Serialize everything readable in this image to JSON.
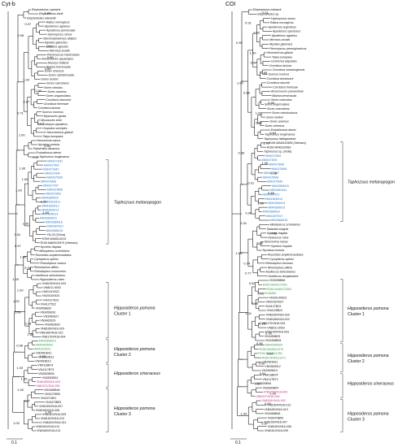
{
  "colors": {
    "blue": "#2d78c8",
    "green": "#3a9a4a",
    "pink": "#c0328a",
    "black": "#111111"
  },
  "panels": [
    {
      "title": "Cyt-b",
      "scale": "0.1",
      "top": [
        "Elephantulus rupestris",
        "Elephantulus intufi",
        "Elephantulus edwardii"
      ],
      "core": [
        "Rattus norvegicus",
        "Apodemus agrarius",
        "Apodemus peninsulae",
        "Hylomyscus simus",
        "Stenocephalemys albipes",
        "Myodes glareolus",
        "Microtus agrestis",
        "Microtus arvalis",
        "Peromyscus maniculatus",
        "Anourosorex squamipes",
        "Neomys fodiens",
        "Blarina brevicauda",
        "Sorex cinereus",
        "Sorex cylindricauda",
        "Sorex isodon",
        "Sorex caecutiens",
        "Sorex minutus",
        "Sorex araneus",
        "Sorex unguiculatus",
        "Crocidura obscurior",
        "Crocidura theresae",
        "Crocidura lasiura",
        "Suncus murinus",
        "Mysosorex geata",
        "Mysosorex zinki",
        "Scalopus aquaticus",
        "Uropsilus soricipes",
        "Neurotrichus gibbsii",
        "Talpa europaea"
      ],
      "bats_a": [
        "Neoromicia nanus",
        "Nyctalus noctula",
        "Pipistrellus abramus",
        "Emballonura alecto",
        "Taphozous longimanus"
      ],
      "tapho": [
        {
          "t": "MM4371M1",
          "c": "blue"
        },
        {
          "t": "MM4372M2",
          "c": "blue"
        },
        {
          "t": "MM4373M3",
          "c": "blue"
        },
        {
          "t": "MM4374M4",
          "c": "blue"
        },
        {
          "t": "MM4375M5",
          "c": "blue"
        },
        {
          "t": "MM4376M6",
          "c": "blue"
        },
        {
          "t": "MM4377M7",
          "c": "blue"
        },
        {
          "t": "MM4378M8",
          "c": "blue"
        },
        {
          "t": "MM4379M9",
          "c": "blue"
        },
        {
          "t": "MM4380M10",
          "c": "blue"
        },
        {
          "t": "MM4381M11",
          "c": "blue"
        },
        {
          "t": "MM4382M12",
          "c": "blue"
        },
        {
          "t": "MM4383M13",
          "c": "blue"
        },
        {
          "t": "MM4384M14",
          "c": "blue"
        },
        {
          "t": "MM4385M15",
          "c": "blue"
        },
        {
          "t": "MM4386M16",
          "c": "blue"
        },
        {
          "t": "MM4387M17",
          "c": "blue"
        },
        {
          "t": "MM4388M18",
          "c": "blue"
        },
        {
          "t": "YN-25 (China)",
          "c": "black"
        },
        {
          "t": "ROM MAM111014",
          "c": "black"
        },
        {
          "t": "ROM MAM110970 (Vietnam)",
          "c": "black"
        }
      ],
      "tapho_label": "Taphozous melanopogon",
      "bats_b": [
        "Nycteris hispida",
        "Miniopterus schreibersi",
        "Rousettus amplexicaudatus",
        "Cynopterus sphinx",
        "Rhinolophus sinicus",
        "Rhinolophus affinis",
        "Rhinolophus monoceros",
        "Aselliscus stoliczkanus",
        "Hipposideros ruber"
      ],
      "c1": [
        {
          "t": "VN8150VN16-003",
          "c": "black"
        },
        {
          "t": "VN8011 6002",
          "c": "black"
        },
        {
          "t": "VN2014X522",
          "c": "black"
        },
        {
          "t": "VN2016X524",
          "c": "black"
        },
        {
          "t": "VN4127623",
          "c": "black"
        },
        {
          "t": "VN4127522",
          "c": "black"
        },
        {
          "t": "VN3458828",
          "c": "black"
        },
        {
          "t": "VN3459626",
          "c": "black"
        },
        {
          "t": "VN3460627",
          "c": "black"
        },
        {
          "t": "VN3462629",
          "c": "black"
        },
        {
          "t": "VN3463630",
          "c": "black"
        },
        {
          "t": "VN8166VN16-020",
          "c": "black"
        },
        {
          "t": "VN8168VN16-022",
          "c": "black"
        },
        {
          "t": "VN8170VN16-004",
          "c": "black"
        }
      ],
      "c2": [
        {
          "t": "MM4389M19",
          "c": "green"
        },
        {
          "t": "MM4390M20",
          "c": "green"
        },
        {
          "t": "MM4391M21",
          "c": "green"
        },
        {
          "t": "VN2961B11",
          "c": "black"
        },
        {
          "t": "VN2962B12",
          "c": "black"
        },
        {
          "t": "VN2963B13",
          "c": "black"
        }
      ],
      "cin": [
        {
          "t": "VN4118B74",
          "c": "black"
        },
        {
          "t": "VN4117B73",
          "c": "black"
        },
        {
          "t": "VN2839B06",
          "c": "black"
        },
        {
          "t": "VN2830B04",
          "c": "black"
        },
        {
          "t": "VN8155VN16-003",
          "c": "pink"
        },
        {
          "t": "VN8157VN16-005",
          "c": "pink"
        }
      ],
      "c3": [
        {
          "t": "VN3468B48",
          "c": "black"
        },
        {
          "t": "VN3470B50",
          "c": "black"
        },
        {
          "t": "VN3471B51",
          "c": "black"
        },
        {
          "t": "VN3473B53",
          "c": "black"
        },
        {
          "t": "VN8159VN16-007",
          "c": "black"
        },
        {
          "t": "VN8160VN16-008",
          "c": "black"
        },
        {
          "t": "VN8161VN16-009",
          "c": "black"
        },
        {
          "t": "VN8162VN16-010",
          "c": "black"
        },
        {
          "t": "VN8163VN16-011",
          "c": "black"
        },
        {
          "t": "VN8164VN16-012",
          "c": "black"
        },
        {
          "t": "VN8165VN16-013",
          "c": "black"
        }
      ],
      "supports": [
        "1.00",
        "0.97",
        "0.98",
        "1.00",
        "0.96",
        "0.89",
        "1.00",
        "1.00",
        "0.87",
        "0.71",
        "1.00",
        "1.00",
        "0.94",
        "0.97",
        "1.00",
        "1.00",
        "1.00",
        "1.00",
        "1.00",
        "1.00",
        "0.81",
        "0.97",
        "1.00",
        "0.98",
        "1.00",
        "1.00",
        "1.00",
        "1.00",
        "0.94",
        "1.00",
        "0.98",
        "1.00",
        "1.00",
        "1.00",
        "1.00",
        "0.87",
        "1.00",
        "1.00"
      ]
    },
    {
      "title": "COI",
      "scale": "0.1",
      "top": [
        "Elephantulus edwardi",
        "Elephantulus sp."
      ],
      "core": [
        "Hylomyscus simus",
        "Rattus norvegicus",
        "Apodemus argenteus",
        "Apodemus speciosus",
        "Apodemus agrarius",
        "Microtus arvalis",
        "Myodes glareolus",
        "Peromyscus pennsylvanicus",
        "Neurotrichus gibbsii",
        "Talpa europaea",
        "Urotrichus talpoides",
        "Crocidura lasiura",
        "Crocidura shantungensis",
        "Suncus murinus",
        "Crocidura dsinezumi",
        "Crocidura douceti",
        "Crocidura theresae",
        "Anourosorex yamashinai",
        "Blarina brevicauda",
        "Sorex roboratus",
        "Sorex unguiculatus",
        "Sorex caecutiens",
        "Sorex minutissimus",
        "Sorex isodon",
        "Sorex araneus",
        "Sorex cinereus",
        "Emballonura alecto",
        "Taphozous longimanus",
        "Taphozous hildegardeae"
      ],
      "bats_a": [],
      "tapho": [
        {
          "t": "ROM MAM110969 (Vietnam)",
          "c": "black"
        },
        {
          "t": "ROM MAM110983",
          "c": "black"
        },
        {
          "t": "Taphozous sp. (India)",
          "c": "black"
        },
        {
          "t": "MM4373M3",
          "c": "blue"
        },
        {
          "t": "MM4374M4",
          "c": "blue"
        },
        {
          "t": "MM4375M5",
          "c": "blue"
        },
        {
          "t": "MM4376M6",
          "c": "blue"
        },
        {
          "t": "MM4377M7",
          "c": "blue"
        },
        {
          "t": "MM4378M8",
          "c": "blue"
        },
        {
          "t": "MM4379M9",
          "c": "blue"
        },
        {
          "t": "MM4380M10",
          "c": "blue"
        },
        {
          "t": "MM4381M11",
          "c": "blue"
        },
        {
          "t": "MM4382M12",
          "c": "blue"
        },
        {
          "t": "MM4383M13",
          "c": "blue"
        },
        {
          "t": "MM4384M14",
          "c": "blue"
        },
        {
          "t": "MM4385M15",
          "c": "blue"
        },
        {
          "t": "MM4386M16",
          "c": "blue"
        },
        {
          "t": "MM4387M17",
          "c": "blue"
        },
        {
          "t": "MM4388M18",
          "c": "blue"
        }
      ],
      "tapho_label": "Taphozous melanopogon",
      "bats_b": [
        "Miniopterus schreibersi",
        "Tadarida insignis",
        "Nycteris tragata",
        "Reduncus rufus",
        "Neoromicia nanus",
        "Nycteris hispida",
        "Nyctalus noctula",
        "Rousettus amplexicaudatus",
        "Cynopterus sphinx",
        "Rhinolophus thomasi",
        "Rhinolophus affinis",
        "Aselliscus stoliczkanus",
        "Aselliscus dongbacana"
      ],
      "c1": [
        {
          "t": "VN3498B66",
          "c": "black"
        },
        {
          "t": "ROM MAM107900",
          "c": "green"
        },
        {
          "t": "ROM MAM107890",
          "c": "green"
        },
        {
          "t": "VN1962B4",
          "c": "green"
        },
        {
          "t": "VN2014X522",
          "c": "black"
        },
        {
          "t": "VN2016X524",
          "c": "black"
        },
        {
          "t": "VN4127B23",
          "c": "black"
        },
        {
          "t": "VN4128B24",
          "c": "black"
        },
        {
          "t": "VN8166VN16-020",
          "c": "black"
        },
        {
          "t": "VN8168VN16-022",
          "c": "black"
        },
        {
          "t": "VN8170VN16-004",
          "c": "black"
        },
        {
          "t": "VN8011 6002",
          "c": "black"
        },
        {
          "t": "VN8150VN16-003",
          "c": "black"
        },
        {
          "t": "VN3455B25",
          "c": "black"
        },
        {
          "t": "VN3458B28",
          "c": "black"
        }
      ],
      "c2": [
        {
          "t": "MM4390M20",
          "c": "green"
        },
        {
          "t": "ROM MAM111370",
          "c": "green"
        },
        {
          "t": "ROM MAM111350",
          "c": "green"
        },
        {
          "t": "ROM MAM111371",
          "c": "green"
        },
        {
          "t": "VN2961B11",
          "c": "black"
        },
        {
          "t": "VN2962B12",
          "c": "black"
        },
        {
          "t": "VN2963B13",
          "c": "black"
        }
      ],
      "cin": [
        {
          "t": "VN4118B74",
          "c": "black"
        },
        {
          "t": "VN4117B73",
          "c": "black"
        },
        {
          "t": "VN2839B06",
          "c": "black"
        },
        {
          "t": "VN2830B04",
          "c": "black"
        },
        {
          "t": "VN8155VN16-003",
          "c": "pink"
        },
        {
          "t": "VN8157VN16-005",
          "c": "pink"
        }
      ],
      "c3": [
        {
          "t": "VN8154VN16-002",
          "c": "pink"
        },
        {
          "t": "VN8164VN16-012",
          "c": "black"
        },
        {
          "t": "VN8165VN16-013",
          "c": "black"
        },
        {
          "t": "VN3468B48",
          "c": "black"
        },
        {
          "t": "VN3470B50",
          "c": "black"
        },
        {
          "t": "VN8159VN16-007",
          "c": "black"
        },
        {
          "t": "VN8160VN16-008",
          "c": "black"
        },
        {
          "t": "VN8161VN16-009",
          "c": "black"
        }
      ],
      "supports": [
        "0.74",
        "0.91",
        "1.00",
        "0.99",
        "1.00",
        "0.94",
        "0.88",
        "1.00",
        "0.86",
        "0.88",
        "1.00",
        "0.90",
        "0.63",
        "1.00",
        "0.66",
        "1.00",
        "0.98",
        "0.91",
        "0.88",
        "1.00",
        "0.90",
        "1.00",
        "0.98",
        "0.76",
        "1.00",
        "0.74",
        "0.77",
        "0.92",
        "0.91",
        "0.88",
        "1.00",
        "0.99",
        "0.76",
        "0.96",
        "0.94",
        "0.99",
        "0.91",
        "0.87",
        "1.00",
        "0.92",
        "1.00",
        "0.97"
      ]
    }
  ],
  "groups": {
    "c1": [
      "Hipposideros pomona",
      "Cluster 1"
    ],
    "c2": [
      "Hipposideros pomona",
      "Cluster 2"
    ],
    "cin": [
      "Hipposideros cineraceus"
    ],
    "c3": [
      "Hipposideros pomona",
      "Cluster 3"
    ]
  }
}
